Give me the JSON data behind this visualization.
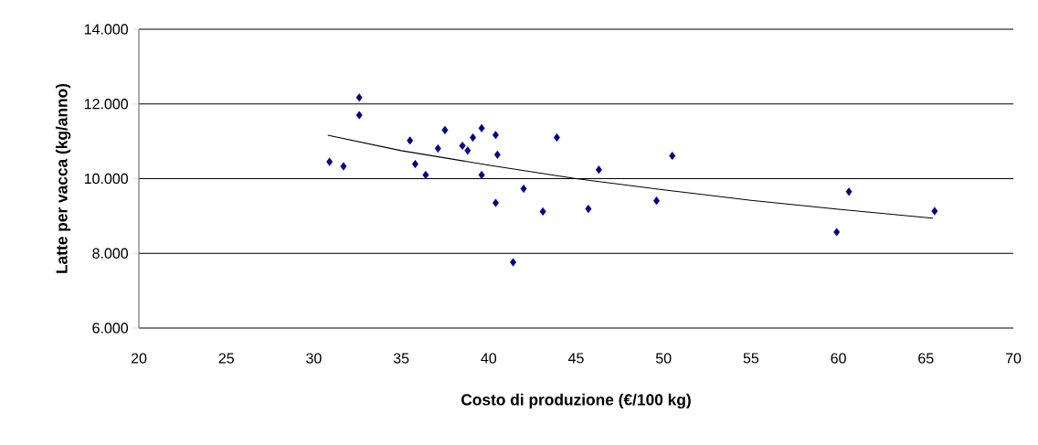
{
  "chart_data": {
    "type": "scatter",
    "xlabel": "Costo di produzione (€/100 kg)",
    "ylabel": "Latte per vacca (kg/anno)",
    "xlim": [
      20,
      70
    ],
    "ylim": [
      6000,
      14000
    ],
    "xticks": [
      20,
      25,
      30,
      35,
      40,
      45,
      50,
      55,
      60,
      65,
      70
    ],
    "yticks": [
      {
        "value": 6000,
        "label": "6.000"
      },
      {
        "value": 8000,
        "label": "8.000"
      },
      {
        "value": 10000,
        "label": "10.000"
      },
      {
        "value": 12000,
        "label": "12.000"
      },
      {
        "value": 14000,
        "label": "14.000"
      }
    ],
    "grid": "y",
    "marker": "diamond",
    "series": [
      {
        "color": "#000080",
        "x": [
          30.9,
          31.7,
          32.6,
          32.6,
          35.5,
          35.8,
          36.4,
          37.1,
          37.5,
          38.5,
          38.8,
          39.1,
          39.6,
          39.6,
          40.4,
          40.5,
          40.4,
          41.4,
          42.0,
          43.1,
          43.9,
          45.7,
          46.3,
          49.6,
          50.5,
          59.9,
          60.6,
          65.5
        ],
        "values": [
          10450,
          10330,
          12170,
          11700,
          11020,
          10390,
          10100,
          10810,
          11300,
          10880,
          10750,
          11100,
          11350,
          10100,
          11170,
          10640,
          9350,
          7760,
          9730,
          9120,
          11100,
          9190,
          10240,
          9410,
          10610,
          8570,
          9650,
          9130
        ]
      },
      {
        "type": "line",
        "color": "#000000",
        "marker": "none",
        "line_style": "solid",
        "x": [
          30.8,
          35,
          40,
          45,
          50,
          55,
          60,
          65.4
        ],
        "values": [
          11160,
          10750,
          10360,
          10000,
          9700,
          9420,
          9180,
          8940
        ]
      }
    ]
  }
}
